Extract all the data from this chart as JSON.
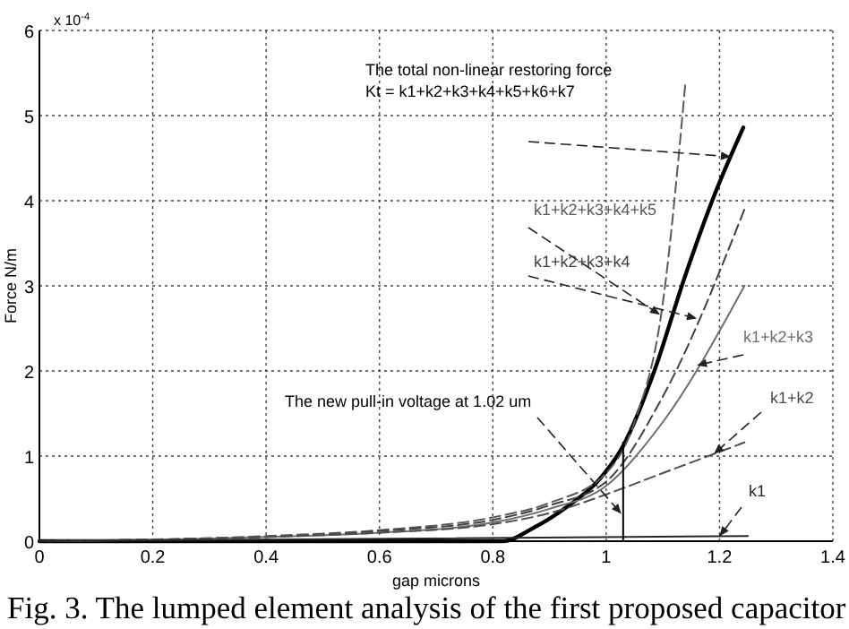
{
  "chart_data": {
    "type": "line",
    "title": "Fig. 3. The lumped element analysis of the first proposed capacitor",
    "xlabel": "gap microns",
    "ylabel": "Force N/m",
    "annotations": [
      "x 10$^{-4}$",
      "The total non-linear restoring force",
      {
        "text": "The new pull-in voltage at 1.02 um",
        "x": 1.03,
        "y": 0.3
      }
    ],
    "xlim": [
      0,
      1.4
    ],
    "ylim": [
      0,
      6
    ],
    "xticks": [
      0,
      0.2,
      0.4,
      0.6,
      0.8,
      1,
      1.2,
      1.4
    ],
    "yticks": [
      0,
      1,
      2,
      3,
      4,
      5,
      6
    ],
    "grid": true,
    "series": [
      {
        "name": "Kt = k1+k2+k3+k4+k5+k6+k7",
        "color": "#000000",
        "line_style": "solid",
        "x": [
          0,
          0.818,
          0.87,
          0.93,
          0.99,
          1.03,
          1.085,
          1.137,
          1.19,
          1.242
        ],
        "values": [
          0,
          0,
          0.15,
          0.4,
          0.74,
          1.12,
          2.0,
          3.07,
          4.05,
          4.86
        ]
      },
      {
        "name": "k1+k2+k3+k4+k5",
        "color": "#5a5a5a",
        "line_style": "dashed",
        "x": [
          0,
          0.4,
          0.6,
          0.8,
          0.9,
          1.0,
          1.05,
          1.1,
          1.14
        ],
        "values": [
          0,
          0.06,
          0.13,
          0.28,
          0.45,
          0.8,
          1.4,
          2.8,
          5.4
        ]
      },
      {
        "name": "k1+k2+k3+k4",
        "color": "#404040",
        "line_style": "dashed",
        "x": [
          0,
          0.4,
          0.6,
          0.8,
          0.9,
          1.0,
          1.1,
          1.244
        ],
        "values": [
          0,
          0.05,
          0.12,
          0.25,
          0.42,
          0.7,
          1.7,
          3.9
        ]
      },
      {
        "name": "k1+k2+k3",
        "color": "#6e6e6e",
        "line_style": "solid",
        "x": [
          0,
          0.4,
          0.6,
          0.8,
          0.9,
          1.0,
          1.1,
          1.244
        ],
        "values": [
          0,
          0.05,
          0.1,
          0.22,
          0.38,
          0.65,
          1.4,
          3.0
        ]
      },
      {
        "name": "k1+k2",
        "color": "#4d4d4d",
        "line_style": "dashed",
        "x": [
          0,
          0.4,
          0.6,
          0.8,
          0.9,
          1.0,
          1.1,
          1.244
        ],
        "values": [
          0,
          0.05,
          0.1,
          0.2,
          0.33,
          0.55,
          0.8,
          1.16
        ]
      },
      {
        "name": "k1",
        "color": "#262626",
        "line_style": "solid",
        "x": [
          0,
          1.25
        ],
        "values": [
          0,
          0.06
        ]
      },
      {
        "color": "#000000",
        "line_style": "solid",
        "x": [
          1.03,
          1.03
        ],
        "values": [
          0,
          1.16
        ]
      }
    ]
  }
}
